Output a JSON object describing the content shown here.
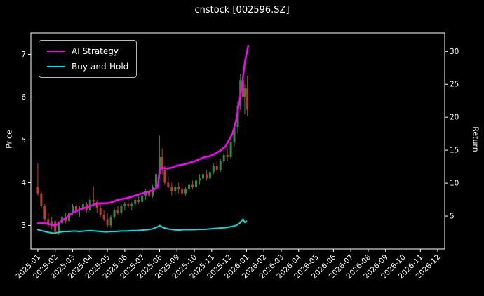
{
  "chart_data": {
    "type": "candlestick+line",
    "title": "cnstock [002596.SZ]",
    "ylabel_left": "Price",
    "ylabel_right": "Return",
    "x_unit": "months since 2025-01",
    "xlim": [
      -0.4,
      23.4
    ],
    "ylim_price": [
      2.45,
      7.5
    ],
    "ylim_return": [
      0,
      32.8
    ],
    "price_ticks": [
      3,
      4,
      5,
      6,
      7
    ],
    "return_ticks": [
      5,
      10,
      15,
      20,
      25,
      30
    ],
    "x_tick_labels": [
      "2025-01",
      "2025-02",
      "2025-03",
      "2025-04",
      "2025-05",
      "2025-06",
      "2025-07",
      "2025-08",
      "2025-09",
      "2025-10",
      "2025-11",
      "2025-12",
      "2026-01",
      "2026-02",
      "2026-03",
      "2026-04",
      "2026-05",
      "2026-06",
      "2026-07",
      "2026-08",
      "2026-09",
      "2026-10",
      "2026-11",
      "2026-12"
    ],
    "legend_position": "upper left",
    "grid": false,
    "colors": {
      "background": "#000000",
      "text": "#ffffff",
      "spine": "#ffffff",
      "up": "#2e8b3d",
      "down": "#c0392b",
      "ai_strategy": "#ff00ff",
      "buy_and_hold": "#00e0e0"
    },
    "series": [
      {
        "name": "AI Strategy",
        "color": "#ff00ff",
        "axis": "price",
        "width": 2.5,
        "points": [
          [
            0,
            3.05
          ],
          [
            0.3,
            3.06
          ],
          [
            0.6,
            3.04
          ],
          [
            0.9,
            3.0
          ],
          [
            1.1,
            3.02
          ],
          [
            1.4,
            3.12
          ],
          [
            1.7,
            3.2
          ],
          [
            2.0,
            3.3
          ],
          [
            2.3,
            3.35
          ],
          [
            2.6,
            3.4
          ],
          [
            3.0,
            3.45
          ],
          [
            3.3,
            3.5
          ],
          [
            3.6,
            3.52
          ],
          [
            4.0,
            3.52
          ],
          [
            4.3,
            3.55
          ],
          [
            4.6,
            3.6
          ],
          [
            5.0,
            3.63
          ],
          [
            5.3,
            3.66
          ],
          [
            5.6,
            3.7
          ],
          [
            6.0,
            3.75
          ],
          [
            6.3,
            3.78
          ],
          [
            6.6,
            3.82
          ],
          [
            6.9,
            3.9
          ],
          [
            7.0,
            4.3
          ],
          [
            7.1,
            4.35
          ],
          [
            7.4,
            4.33
          ],
          [
            7.7,
            4.35
          ],
          [
            8.0,
            4.4
          ],
          [
            8.3,
            4.42
          ],
          [
            8.6,
            4.45
          ],
          [
            9.0,
            4.5
          ],
          [
            9.3,
            4.55
          ],
          [
            9.6,
            4.6
          ],
          [
            9.9,
            4.62
          ],
          [
            10.2,
            4.68
          ],
          [
            10.5,
            4.75
          ],
          [
            10.8,
            4.85
          ],
          [
            11.0,
            5.0
          ],
          [
            11.2,
            5.15
          ],
          [
            11.4,
            5.45
          ],
          [
            11.6,
            5.9
          ],
          [
            11.75,
            6.3
          ],
          [
            11.9,
            6.8
          ],
          [
            12.0,
            7.0
          ],
          [
            12.1,
            7.2
          ]
        ]
      },
      {
        "name": "Buy-and-Hold",
        "color": "#00e0e0",
        "axis": "price",
        "width": 2,
        "points": [
          [
            0,
            2.9
          ],
          [
            0.3,
            2.87
          ],
          [
            0.6,
            2.84
          ],
          [
            0.9,
            2.82
          ],
          [
            1.2,
            2.84
          ],
          [
            1.5,
            2.86
          ],
          [
            1.8,
            2.86
          ],
          [
            2.1,
            2.87
          ],
          [
            2.4,
            2.86
          ],
          [
            2.7,
            2.87
          ],
          [
            3.0,
            2.88
          ],
          [
            3.3,
            2.87
          ],
          [
            3.6,
            2.86
          ],
          [
            3.9,
            2.85
          ],
          [
            4.2,
            2.86
          ],
          [
            4.5,
            2.86
          ],
          [
            4.8,
            2.87
          ],
          [
            5.1,
            2.87
          ],
          [
            5.4,
            2.88
          ],
          [
            5.7,
            2.88
          ],
          [
            6.0,
            2.89
          ],
          [
            6.3,
            2.9
          ],
          [
            6.6,
            2.92
          ],
          [
            6.9,
            2.97
          ],
          [
            7.0,
            3.0
          ],
          [
            7.2,
            2.95
          ],
          [
            7.5,
            2.92
          ],
          [
            7.8,
            2.9
          ],
          [
            8.1,
            2.89
          ],
          [
            8.4,
            2.9
          ],
          [
            8.7,
            2.9
          ],
          [
            9.0,
            2.9
          ],
          [
            9.3,
            2.91
          ],
          [
            9.6,
            2.91
          ],
          [
            9.9,
            2.92
          ],
          [
            10.2,
            2.93
          ],
          [
            10.5,
            2.94
          ],
          [
            10.8,
            2.95
          ],
          [
            11.1,
            2.97
          ],
          [
            11.4,
            3.0
          ],
          [
            11.6,
            3.05
          ],
          [
            11.8,
            3.15
          ],
          [
            11.9,
            3.07
          ],
          [
            12.0,
            3.1
          ]
        ]
      }
    ],
    "candles": [
      [
        0.0,
        3.9,
        4.45,
        3.7,
        3.75
      ],
      [
        0.2,
        3.75,
        3.8,
        3.4,
        3.45
      ],
      [
        0.4,
        3.45,
        3.5,
        3.1,
        3.15
      ],
      [
        0.6,
        3.15,
        3.3,
        2.95,
        3.0
      ],
      [
        0.8,
        3.0,
        3.2,
        2.9,
        3.1
      ],
      [
        1.0,
        3.1,
        3.15,
        2.8,
        2.85
      ],
      [
        1.2,
        2.85,
        3.1,
        2.78,
        3.05
      ],
      [
        1.4,
        3.05,
        3.25,
        3.0,
        3.2
      ],
      [
        1.6,
        3.2,
        3.3,
        3.05,
        3.1
      ],
      [
        1.8,
        3.1,
        3.35,
        3.05,
        3.3
      ],
      [
        2.0,
        3.3,
        3.5,
        3.25,
        3.45
      ],
      [
        2.2,
        3.45,
        3.55,
        3.3,
        3.35
      ],
      [
        2.4,
        3.35,
        3.45,
        3.2,
        3.4
      ],
      [
        2.6,
        3.4,
        3.6,
        3.35,
        3.5
      ],
      [
        2.8,
        3.5,
        3.55,
        3.3,
        3.35
      ],
      [
        3.0,
        3.35,
        3.7,
        3.3,
        3.6
      ],
      [
        3.2,
        3.6,
        3.9,
        3.5,
        3.55
      ],
      [
        3.4,
        3.55,
        3.6,
        3.3,
        3.4
      ],
      [
        3.6,
        3.4,
        3.5,
        3.2,
        3.25
      ],
      [
        3.8,
        3.25,
        3.35,
        3.1,
        3.15
      ],
      [
        4.0,
        3.15,
        3.3,
        2.95,
        3.0
      ],
      [
        4.2,
        3.0,
        3.25,
        2.95,
        3.2
      ],
      [
        4.4,
        3.2,
        3.4,
        3.15,
        3.35
      ],
      [
        4.6,
        3.35,
        3.45,
        3.25,
        3.3
      ],
      [
        4.8,
        3.3,
        3.5,
        3.25,
        3.45
      ],
      [
        5.0,
        3.45,
        3.55,
        3.35,
        3.5
      ],
      [
        5.2,
        3.5,
        3.6,
        3.4,
        3.45
      ],
      [
        5.4,
        3.45,
        3.55,
        3.35,
        3.5
      ],
      [
        5.6,
        3.5,
        3.65,
        3.45,
        3.6
      ],
      [
        5.8,
        3.6,
        3.7,
        3.5,
        3.55
      ],
      [
        6.0,
        3.55,
        3.75,
        3.5,
        3.7
      ],
      [
        6.2,
        3.7,
        3.85,
        3.6,
        3.8
      ],
      [
        6.4,
        3.8,
        3.9,
        3.65,
        3.7
      ],
      [
        6.6,
        3.7,
        3.95,
        3.65,
        3.9
      ],
      [
        6.8,
        3.9,
        4.3,
        3.85,
        4.2
      ],
      [
        7.0,
        4.2,
        5.1,
        4.1,
        4.6
      ],
      [
        7.15,
        4.6,
        4.8,
        4.2,
        4.3
      ],
      [
        7.3,
        4.3,
        4.4,
        3.95,
        4.0
      ],
      [
        7.5,
        4.0,
        4.15,
        3.85,
        3.9
      ],
      [
        7.7,
        3.9,
        4.0,
        3.7,
        3.8
      ],
      [
        7.9,
        3.8,
        3.95,
        3.7,
        3.9
      ],
      [
        8.1,
        3.9,
        4.0,
        3.75,
        3.85
      ],
      [
        8.3,
        3.85,
        3.95,
        3.7,
        3.75
      ],
      [
        8.5,
        3.75,
        3.9,
        3.7,
        3.85
      ],
      [
        8.7,
        3.85,
        4.0,
        3.8,
        3.95
      ],
      [
        8.9,
        3.95,
        4.05,
        3.85,
        3.9
      ],
      [
        9.1,
        3.9,
        4.1,
        3.85,
        4.05
      ],
      [
        9.3,
        4.05,
        4.2,
        3.95,
        4.1
      ],
      [
        9.5,
        4.1,
        4.25,
        4.0,
        4.2
      ],
      [
        9.7,
        4.2,
        4.3,
        4.05,
        4.1
      ],
      [
        9.9,
        4.1,
        4.3,
        4.05,
        4.25
      ],
      [
        10.1,
        4.25,
        4.45,
        4.2,
        4.4
      ],
      [
        10.3,
        4.4,
        4.5,
        4.25,
        4.3
      ],
      [
        10.5,
        4.3,
        4.55,
        4.25,
        4.5
      ],
      [
        10.7,
        4.5,
        4.7,
        4.45,
        4.65
      ],
      [
        10.9,
        4.65,
        4.8,
        4.5,
        4.6
      ],
      [
        11.1,
        4.6,
        5.0,
        4.55,
        4.95
      ],
      [
        11.3,
        4.95,
        5.4,
        4.85,
        5.3
      ],
      [
        11.5,
        5.3,
        5.9,
        5.15,
        5.8
      ],
      [
        11.65,
        5.8,
        6.55,
        5.7,
        6.4
      ],
      [
        11.8,
        6.4,
        6.6,
        5.9,
        6.0
      ],
      [
        11.9,
        6.0,
        6.3,
        5.6,
        6.2
      ],
      [
        12.05,
        6.2,
        6.5,
        5.55,
        5.7
      ]
    ]
  }
}
